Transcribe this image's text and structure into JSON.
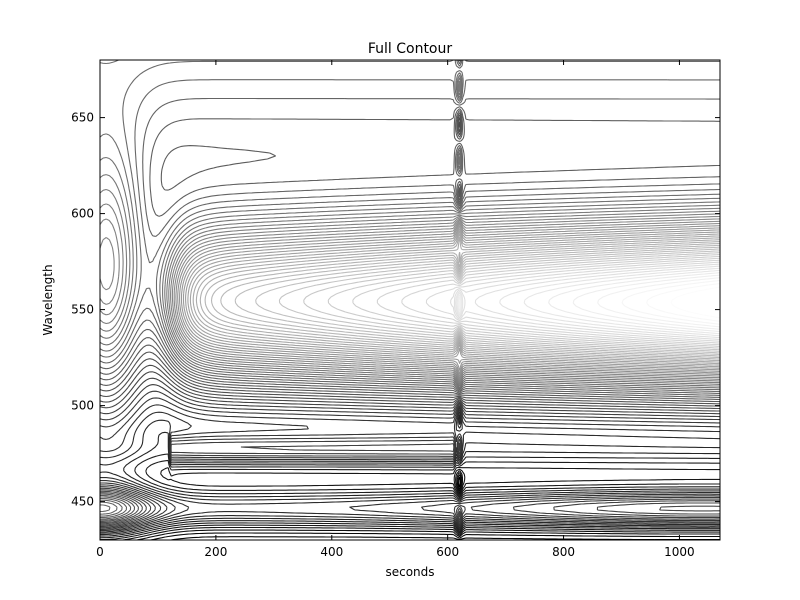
{
  "chart_data": {
    "type": "contour",
    "title": "Full Contour",
    "xlabel": "seconds",
    "ylabel": "Wavelength",
    "xlim": [
      0,
      1070
    ],
    "ylim": [
      430,
      680
    ],
    "x_ticks": [
      0,
      200,
      400,
      600,
      800,
      1000
    ],
    "y_ticks": [
      450,
      500,
      550,
      600,
      650
    ],
    "grid": false,
    "legend": "none",
    "colormap": "gray",
    "line_color_dark": "#000000",
    "line_color_light": "#ffffff",
    "features": {
      "main_band": {
        "center_wavelength": 552,
        "rises_after_seconds": 120,
        "vertical_artifact_seconds": 620
      },
      "lower_band": {
        "center_wavelength": 446,
        "peak_seconds": 1040
      },
      "mid_feature": {
        "center_wavelength": 477,
        "ends_seconds": 610
      }
    }
  }
}
